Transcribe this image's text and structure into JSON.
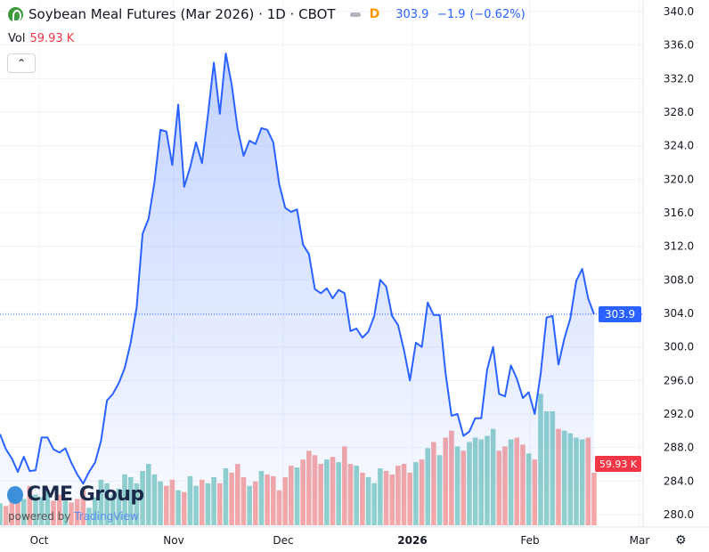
{
  "header": {
    "title": "Soybean Meal Futures (Mar 2026) · 1D · CBOT",
    "interval_badge": "D",
    "last": "303.9",
    "change": "−1.9",
    "change_pct": "(−0.62%)"
  },
  "volume_legend": {
    "label": "Vol",
    "value": "59.93 K"
  },
  "branding": {
    "logo": "CME Group",
    "powered_prefix": "powered by",
    "powered_brand": "TradingView"
  },
  "colors": {
    "line": "#2962ff",
    "up_vol": "#92d2cc",
    "down_vol": "#f7a9a7",
    "price_tag": "#2962ff",
    "vol_tag": "#f23645"
  },
  "chart_data": {
    "type": "area",
    "title": "Soybean Meal Futures (Mar 2026) · 1D · CBOT",
    "ylim": [
      279,
      341
    ],
    "yticks": [
      "340.0",
      "336.0",
      "332.0",
      "328.0",
      "324.0",
      "320.0",
      "316.0",
      "312.0",
      "308.0",
      "304.0",
      "300.0",
      "296.0",
      "292.0",
      "288.0",
      "284.0",
      "280.0"
    ],
    "xticks": [
      {
        "label": "Oct",
        "bold": false
      },
      {
        "label": "Nov",
        "bold": false
      },
      {
        "label": "Dec",
        "bold": false
      },
      {
        "label": "2026",
        "bold": true
      },
      {
        "label": "Feb",
        "bold": false
      },
      {
        "label": "Mar",
        "bold": false
      }
    ],
    "last_price_label": "303.9",
    "last_volume_label": "59.93 K",
    "close": [
      289.6,
      287.8,
      286.7,
      285.1,
      286.9,
      285.2,
      285.3,
      289.2,
      289.2,
      287.8,
      287.4,
      287.9,
      286.2,
      284.8,
      283.7,
      285.1,
      286.2,
      288.8,
      293.6,
      294.4,
      295.7,
      297.5,
      300.5,
      304.7,
      313.5,
      315.3,
      319.6,
      325.9,
      325.7,
      321.7,
      328.9,
      319.1,
      321.4,
      324.4,
      321.9,
      327.6,
      333.9,
      327.8,
      335.0,
      331.3,
      326.0,
      322.8,
      324.6,
      324.2,
      326.1,
      325.9,
      324.4,
      319.4,
      316.6,
      316.1,
      316.4,
      312.2,
      311.1,
      306.9,
      306.4,
      307.0,
      305.8,
      306.8,
      306.4,
      301.9,
      302.2,
      301.1,
      301.8,
      303.7,
      308.0,
      307.2,
      303.7,
      302.6,
      299.6,
      296.0,
      300.5,
      300.0,
      305.3,
      303.8,
      303.8,
      296.8,
      291.8,
      292.0,
      289.4,
      289.9,
      291.5,
      291.5,
      297.3,
      300.0,
      294.4,
      294.1,
      297.8,
      296.2,
      293.9,
      294.6,
      292.0,
      296.8,
      303.5,
      303.7,
      297.9,
      301.0,
      303.4,
      307.9,
      309.3,
      305.8,
      303.9
    ],
    "volume_k": [
      25,
      22,
      38,
      28,
      30,
      45,
      35,
      32,
      40,
      28,
      35,
      30,
      26,
      30,
      40,
      20,
      32,
      52,
      48,
      35,
      42,
      58,
      55,
      48,
      62,
      70,
      58,
      50,
      45,
      52,
      40,
      38,
      56,
      45,
      52,
      48,
      55,
      48,
      65,
      60,
      70,
      55,
      45,
      50,
      62,
      58,
      56,
      40,
      55,
      68,
      66,
      75,
      85,
      80,
      70,
      75,
      78,
      72,
      90,
      70,
      68,
      60,
      55,
      48,
      65,
      62,
      58,
      68,
      70,
      60,
      72,
      75,
      88,
      95,
      80,
      100,
      108,
      90,
      85,
      95,
      100,
      98,
      102,
      110,
      85,
      90,
      98,
      100,
      92,
      82,
      75,
      150,
      130,
      130,
      110,
      108,
      105,
      100,
      98,
      100,
      60
    ]
  }
}
